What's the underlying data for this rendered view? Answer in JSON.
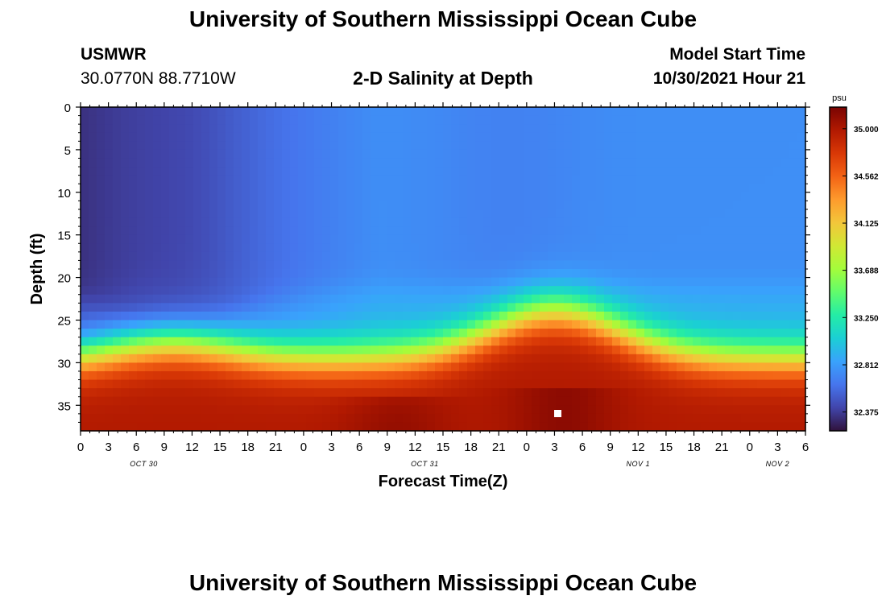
{
  "page": {
    "title": "University of Southern Mississippi Ocean Cube",
    "station_id": "USMWR",
    "coords": "30.0770N  88.7710W",
    "chart_title": "2-D Salinity at Depth",
    "model_start_label": "Model Start Time",
    "model_start_value": "10/30/2021 Hour 21",
    "footer_title": "University of Southern Mississippi Ocean Cube"
  },
  "chart_data": {
    "type": "heatmap",
    "title": "2-D Salinity at Depth",
    "xlabel": "Forecast Time(Z)",
    "ylabel": "Depth (ft)",
    "x_unit": "hours",
    "x_tick_labels": [
      "0",
      "3",
      "6",
      "9",
      "12",
      "15",
      "18",
      "21",
      "0",
      "3",
      "6",
      "9",
      "12",
      "15",
      "18",
      "21",
      "0",
      "3",
      "6",
      "9",
      "12",
      "15",
      "18",
      "21",
      "0",
      "3",
      "6"
    ],
    "day_labels": [
      "OCT 30",
      "OCT 31",
      "NOV 1",
      "NOV 2"
    ],
    "y_ticks": [
      0,
      5,
      10,
      15,
      20,
      25,
      30,
      35
    ],
    "y_tick_labels": [
      "0",
      "5",
      "10",
      "15",
      "20",
      "25",
      "30",
      "35"
    ],
    "ylim": [
      38,
      0
    ],
    "xlim": [
      0,
      78
    ],
    "colorbar": {
      "unit": "psu",
      "range": [
        32.2,
        35.2
      ],
      "tick_values": [
        35.0,
        34.562,
        34.125,
        33.688,
        33.25,
        32.812,
        32.375
      ],
      "tick_labels": [
        "35.000",
        "34.562",
        "34.125",
        "33.688",
        "33.250",
        "32.812",
        "32.375"
      ],
      "colors": [
        "#30123b",
        "#4145ab",
        "#4675ed",
        "#39a2fc",
        "#1bcfd4",
        "#24eca6",
        "#61fc6c",
        "#a4fc3b",
        "#d1e834",
        "#f3c63a",
        "#fe9b2d",
        "#f36315",
        "#d93806",
        "#b11901",
        "#7a0402"
      ]
    },
    "description_fields": {
      "marker_time_hour": 51,
      "marker_depth_ft": 36
    }
  }
}
